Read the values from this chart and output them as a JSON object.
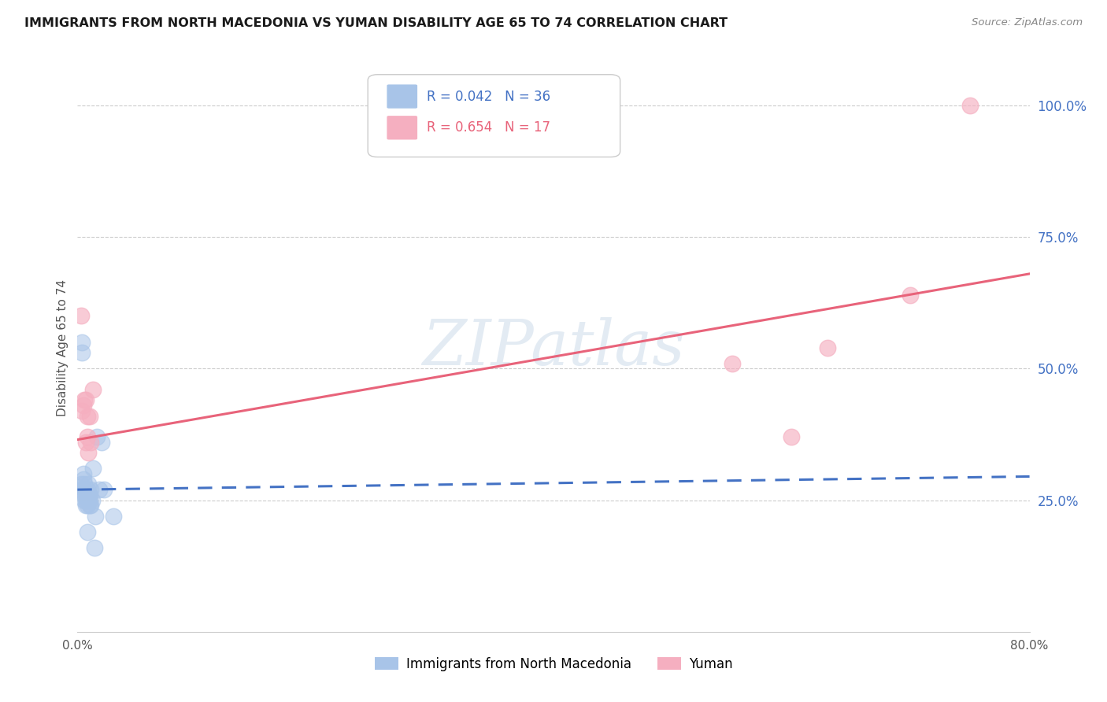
{
  "title": "IMMIGRANTS FROM NORTH MACEDONIA VS YUMAN DISABILITY AGE 65 TO 74 CORRELATION CHART",
  "source": "Source: ZipAtlas.com",
  "ylabel": "Disability Age 65 to 74",
  "xlim": [
    0.0,
    0.8
  ],
  "ylim": [
    0.0,
    1.08
  ],
  "ytick_labels": [
    "25.0%",
    "50.0%",
    "75.0%",
    "100.0%"
  ],
  "ytick_positions": [
    0.25,
    0.5,
    0.75,
    1.0
  ],
  "blue_label": "Immigrants from North Macedonia",
  "pink_label": "Yuman",
  "blue_R": "0.042",
  "blue_N": "36",
  "pink_R": "0.654",
  "pink_N": "17",
  "blue_color": "#a8c4e8",
  "pink_color": "#f5afc0",
  "blue_line_color": "#4472c4",
  "pink_line_color": "#e8637a",
  "watermark": "ZIPatlas",
  "blue_scatter_x": [
    0.003,
    0.003,
    0.004,
    0.004,
    0.005,
    0.005,
    0.005,
    0.006,
    0.006,
    0.006,
    0.006,
    0.007,
    0.007,
    0.007,
    0.008,
    0.008,
    0.008,
    0.009,
    0.009,
    0.009,
    0.01,
    0.01,
    0.01,
    0.011,
    0.011,
    0.012,
    0.013,
    0.014,
    0.015,
    0.016,
    0.018,
    0.02,
    0.022,
    0.03,
    0.009,
    0.008
  ],
  "blue_scatter_y": [
    0.27,
    0.28,
    0.53,
    0.55,
    0.27,
    0.29,
    0.3,
    0.25,
    0.26,
    0.27,
    0.28,
    0.24,
    0.25,
    0.26,
    0.24,
    0.26,
    0.27,
    0.25,
    0.26,
    0.28,
    0.24,
    0.25,
    0.26,
    0.24,
    0.27,
    0.25,
    0.31,
    0.16,
    0.22,
    0.37,
    0.27,
    0.36,
    0.27,
    0.22,
    0.26,
    0.19
  ],
  "pink_scatter_x": [
    0.003,
    0.004,
    0.005,
    0.006,
    0.007,
    0.007,
    0.008,
    0.008,
    0.009,
    0.01,
    0.011,
    0.013,
    0.55,
    0.6,
    0.63,
    0.7,
    0.75
  ],
  "pink_scatter_y": [
    0.6,
    0.42,
    0.43,
    0.44,
    0.36,
    0.44,
    0.37,
    0.41,
    0.34,
    0.41,
    0.36,
    0.46,
    0.51,
    0.37,
    0.54,
    0.64,
    1.0
  ],
  "blue_trend_x": [
    0.0,
    0.8
  ],
  "blue_trend_y": [
    0.27,
    0.295
  ],
  "pink_trend_x": [
    0.0,
    0.8
  ],
  "pink_trend_y": [
    0.365,
    0.68
  ]
}
